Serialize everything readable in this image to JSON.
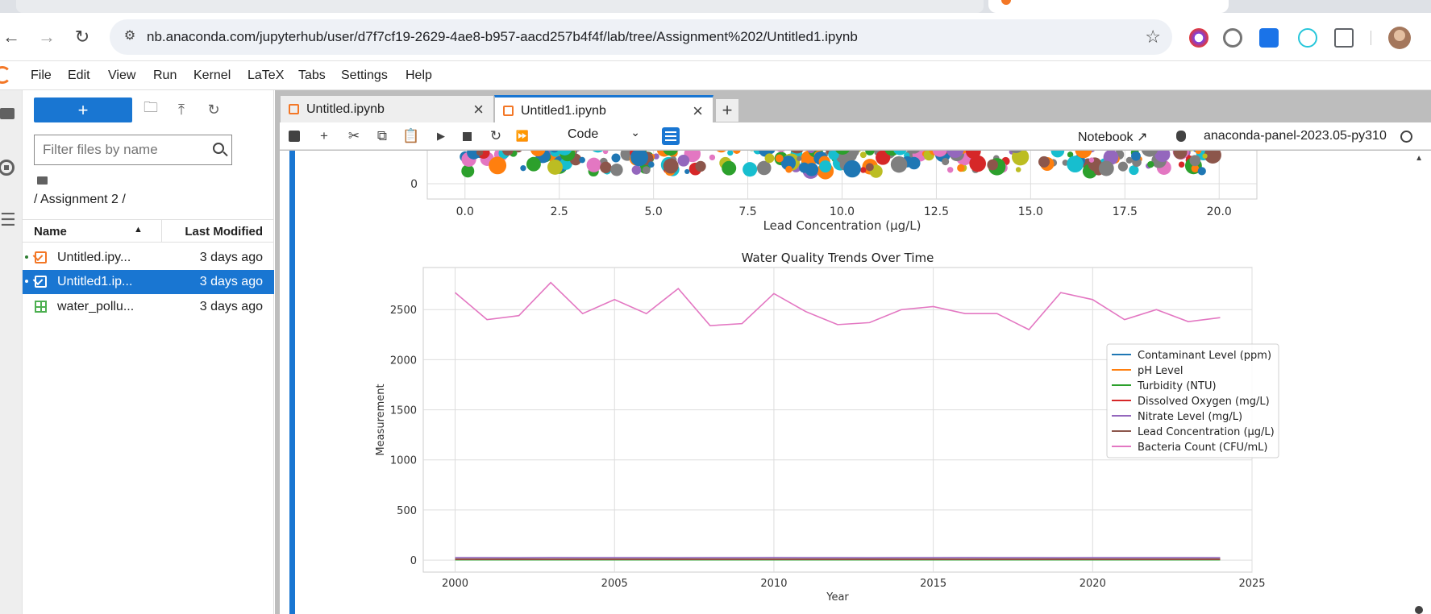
{
  "browser": {
    "url": "nb.anaconda.com/jupyterhub/user/d7f7cf19-2629-4ae8-b957-aacd257b4f4f/lab/tree/Assignment%202/Untitled1.ipynb"
  },
  "menubar": {
    "items": [
      "File",
      "Edit",
      "View",
      "Run",
      "Kernel",
      "LaTeX",
      "Tabs",
      "Settings",
      "Help"
    ]
  },
  "filebrowser": {
    "new_label": "+",
    "filter_placeholder": "Filter files by name",
    "breadcrumb": "/ Assignment 2 /",
    "col_name": "Name",
    "col_modified": "Last Modified",
    "files": [
      {
        "name": "Untitled.ipy...",
        "modified": "3 days ago",
        "kind": "notebook",
        "running": true,
        "selected": false
      },
      {
        "name": "Untitled1.ip...",
        "modified": "3 days ago",
        "kind": "notebook",
        "running": true,
        "selected": true
      },
      {
        "name": "water_pollu...",
        "modified": "3 days ago",
        "kind": "csv",
        "running": false,
        "selected": false
      }
    ]
  },
  "tabs": [
    {
      "label": "Untitled.ipynb",
      "active": false
    },
    {
      "label": "Untitled1.ipynb",
      "active": true
    }
  ],
  "toolbar": {
    "cell_type": "Code",
    "notebook_label": "Notebook",
    "kernel_name": "anaconda-panel-2023.05-py310"
  },
  "colors": {
    "accent": "#1976d2",
    "jupyter_orange": "#f37726"
  },
  "chart_data": [
    {
      "type": "scatter",
      "title": "",
      "xlabel": "Lead Concentration (µg/L)",
      "ylabel": "",
      "xlim": [
        -1,
        21
      ],
      "xticks": [
        "0.0",
        "2.5",
        "5.0",
        "7.5",
        "10.0",
        "12.5",
        "15.0",
        "17.5",
        "20.0"
      ],
      "yticks_visible": [
        "0"
      ],
      "grid": true,
      "note_visible_partially": true
    },
    {
      "type": "line",
      "title": "Water Quality Trends Over Time",
      "xlabel": "Year",
      "ylabel": "Measurement",
      "xlim": [
        1999,
        2025
      ],
      "ylim": [
        -120,
        2920
      ],
      "xticks": [
        2000,
        2005,
        2010,
        2015,
        2020,
        2025
      ],
      "yticks": [
        0,
        500,
        1000,
        1500,
        2000,
        2500
      ],
      "grid": true,
      "legend_position": "right",
      "x": [
        2000,
        2001,
        2002,
        2003,
        2004,
        2005,
        2006,
        2007,
        2008,
        2009,
        2010,
        2011,
        2012,
        2013,
        2014,
        2015,
        2016,
        2017,
        2018,
        2019,
        2020,
        2021,
        2022,
        2023,
        2024
      ],
      "series": [
        {
          "name": "Contaminant Level (ppm)",
          "color": "#1f77b4",
          "values": [
            5,
            5,
            5,
            5,
            5,
            5,
            5,
            5,
            5,
            5,
            5,
            5,
            5,
            5,
            5,
            5,
            5,
            5,
            5,
            5,
            5,
            5,
            5,
            5,
            5
          ]
        },
        {
          "name": "pH Level",
          "color": "#ff7f0e",
          "values": [
            7,
            7,
            7,
            7,
            7,
            7,
            7,
            7,
            7,
            7,
            7,
            7,
            7,
            7,
            7,
            7,
            7,
            7,
            7,
            7,
            7,
            7,
            7,
            7,
            7
          ]
        },
        {
          "name": "Turbidity (NTU)",
          "color": "#2ca02c",
          "values": [
            3,
            3,
            3,
            3,
            3,
            3,
            3,
            3,
            3,
            3,
            3,
            3,
            3,
            3,
            3,
            3,
            3,
            3,
            3,
            3,
            3,
            3,
            3,
            3,
            3
          ]
        },
        {
          "name": "Dissolved Oxygen (mg/L)",
          "color": "#d62728",
          "values": [
            8,
            8,
            8,
            8,
            8,
            8,
            8,
            8,
            8,
            8,
            8,
            8,
            8,
            8,
            8,
            8,
            8,
            8,
            8,
            8,
            8,
            8,
            8,
            8,
            8
          ]
        },
        {
          "name": "Nitrate Level (mg/L)",
          "color": "#9467bd",
          "values": [
            25,
            25,
            24,
            26,
            25,
            25,
            25,
            24,
            25,
            25,
            26,
            25,
            25,
            24,
            25,
            25,
            26,
            25,
            25,
            24,
            25,
            25,
            25,
            25,
            24
          ]
        },
        {
          "name": "Lead Concentration (µg/L)",
          "color": "#8c564b",
          "values": [
            10,
            10,
            10,
            10,
            10,
            10,
            10,
            10,
            10,
            10,
            10,
            10,
            10,
            10,
            10,
            10,
            10,
            10,
            10,
            10,
            10,
            10,
            10,
            10,
            10
          ]
        },
        {
          "name": "Bacteria Count (CFU/mL)",
          "color": "#e377c2",
          "values": [
            2670,
            2400,
            2440,
            2770,
            2460,
            2600,
            2460,
            2710,
            2340,
            2360,
            2660,
            2480,
            2350,
            2370,
            2500,
            2530,
            2460,
            2460,
            2300,
            2670,
            2600,
            2400,
            2500,
            2380,
            2420
          ]
        }
      ]
    }
  ]
}
